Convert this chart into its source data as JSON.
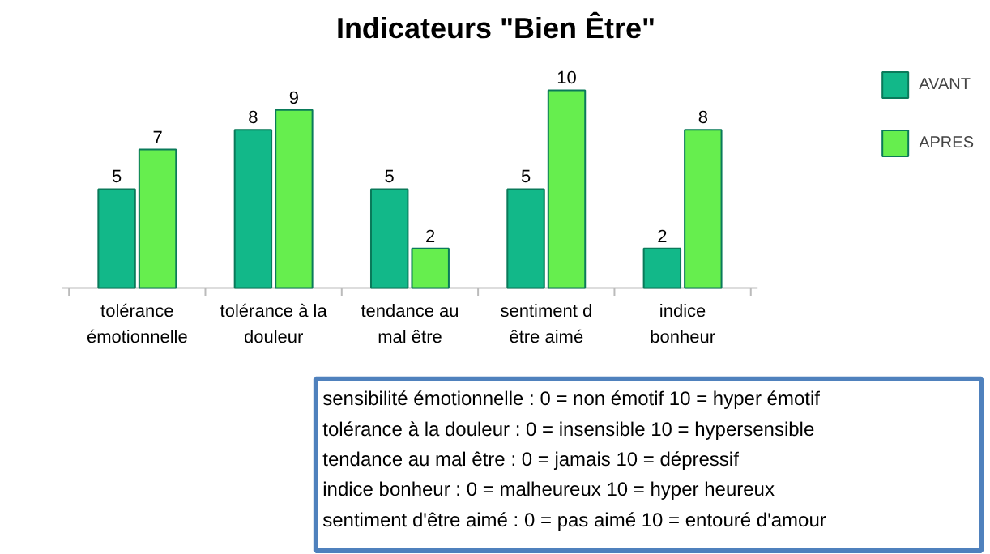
{
  "chart_data": {
    "type": "bar",
    "title": "Indicateurs \"Bien Être\"",
    "categories": [
      "tolérance\némotionnelle",
      "tolérance à la\ndouleur",
      "tendance au\nmal être",
      "sentiment d\nêtre aimé",
      "indice\nbonheur"
    ],
    "series": [
      {
        "name": "AVANT",
        "color": "#12b889",
        "values": [
          5,
          8,
          5,
          5,
          2
        ]
      },
      {
        "name": "APRES",
        "color": "#66ee4e",
        "values": [
          7,
          9,
          2,
          10,
          8
        ]
      }
    ],
    "data_labels": true,
    "legend": "top right",
    "grid": false,
    "annotations": [
      "sensibilité émotionnelle : 0 = non émotif 10 = hyper émotif",
      "tolérance à la douleur : 0 = insensible 10 = hypersensible",
      "tendance au mal être : 0 = jamais 10 = dépressif",
      "indice bonheur : 0 = malheureux 10 = hyper heureux",
      "sentiment d'être aimé : 0 = pas aimé 10 = entouré d'amour"
    ]
  }
}
